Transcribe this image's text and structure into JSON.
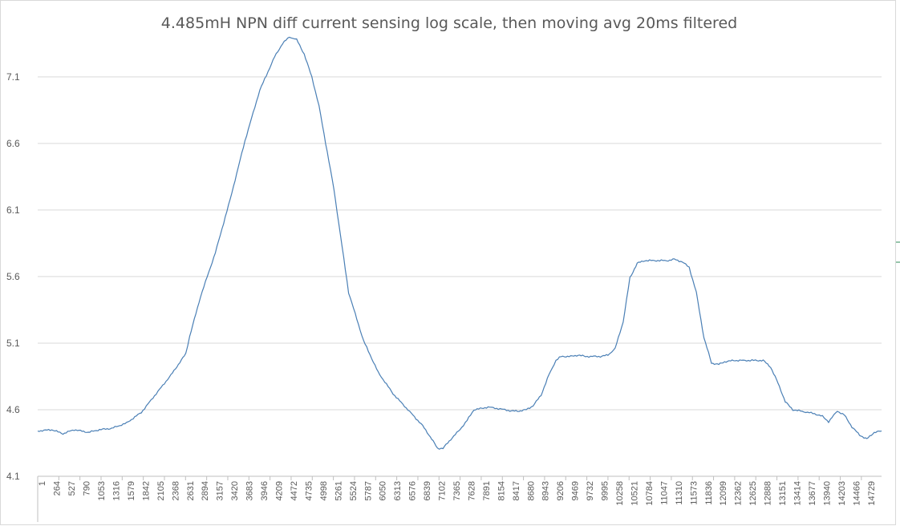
{
  "chart_data": {
    "type": "line",
    "title": "4.485mH NPN diff current sensing log scale, then moving avg 20ms filtered",
    "xlabel": "",
    "ylabel": "",
    "ylim": [
      4.1,
      7.4
    ],
    "yticks": [
      "4.1",
      "4.6",
      "5.1",
      "5.6",
      "6.1",
      "6.6",
      "7.1"
    ],
    "xlim": [
      1,
      14990
    ],
    "x_tick_labels": [
      "1",
      "264",
      "527",
      "790",
      "1053",
      "1316",
      "1579",
      "1842",
      "2105",
      "2368",
      "2631",
      "2894",
      "3157",
      "3420",
      "3683",
      "3946",
      "4209",
      "4472",
      "4735",
      "4998",
      "5261",
      "5524",
      "5787",
      "6050",
      "6313",
      "6576",
      "6839",
      "7102",
      "7365",
      "7628",
      "7891",
      "8154",
      "8417",
      "8680",
      "8943",
      "9206",
      "9469",
      "9732",
      "9995",
      "10258",
      "10521",
      "10784",
      "11047",
      "11310",
      "11573",
      "11836",
      "12099",
      "12362",
      "12625",
      "12888",
      "13151",
      "13414",
      "13677",
      "13940",
      "14203",
      "14466",
      "14729"
    ],
    "grid": true,
    "legend": "none",
    "series": [
      {
        "color": "#4a7fb5",
        "x": [
          1,
          250,
          450,
          650,
          900,
          1100,
          1316,
          1579,
          1842,
          2105,
          2368,
          2500,
          2631,
          2700,
          2894,
          3157,
          3420,
          3683,
          3946,
          4209,
          4350,
          4472,
          4600,
          4735,
          4870,
          4998,
          5261,
          5524,
          5787,
          6050,
          6313,
          6576,
          6839,
          7000,
          7102,
          7200,
          7365,
          7500,
          7628,
          7750,
          7891,
          8000,
          8154,
          8300,
          8417,
          8550,
          8680,
          8800,
          8943,
          9080,
          9206,
          9300,
          9469,
          9600,
          9732,
          9850,
          9995,
          10130,
          10258,
          10400,
          10521,
          10650,
          10784,
          10900,
          11047,
          11200,
          11310,
          11450,
          11573,
          11700,
          11836,
          11970,
          12099,
          12200,
          12362,
          12500,
          12625,
          12750,
          12888,
          13020,
          13151,
          13280,
          13414,
          13550,
          13677,
          13800,
          13940,
          14050,
          14203,
          14330,
          14466,
          14600,
          14729,
          14860,
          14990
        ],
        "y": [
          4.44,
          4.45,
          4.42,
          4.45,
          4.43,
          4.45,
          4.46,
          4.5,
          4.58,
          4.72,
          4.86,
          4.94,
          5.02,
          5.15,
          5.45,
          5.78,
          6.18,
          6.62,
          7.0,
          7.25,
          7.35,
          7.4,
          7.38,
          7.27,
          7.1,
          6.88,
          6.26,
          5.48,
          5.12,
          4.88,
          4.72,
          4.6,
          4.48,
          4.38,
          4.31,
          4.31,
          4.39,
          4.45,
          4.52,
          4.6,
          4.61,
          4.62,
          4.61,
          4.6,
          4.59,
          4.59,
          4.6,
          4.63,
          4.71,
          4.86,
          4.97,
          5.0,
          5.0,
          5.01,
          5.0,
          5.0,
          5.0,
          5.01,
          5.06,
          5.26,
          5.59,
          5.7,
          5.72,
          5.72,
          5.72,
          5.72,
          5.73,
          5.71,
          5.67,
          5.48,
          5.14,
          4.95,
          4.94,
          4.96,
          4.97,
          4.97,
          4.97,
          4.97,
          4.97,
          4.92,
          4.8,
          4.66,
          4.6,
          4.59,
          4.58,
          4.57,
          4.55,
          4.51,
          4.59,
          4.56,
          4.47,
          4.41,
          4.38,
          4.43,
          4.44
        ]
      }
    ]
  }
}
